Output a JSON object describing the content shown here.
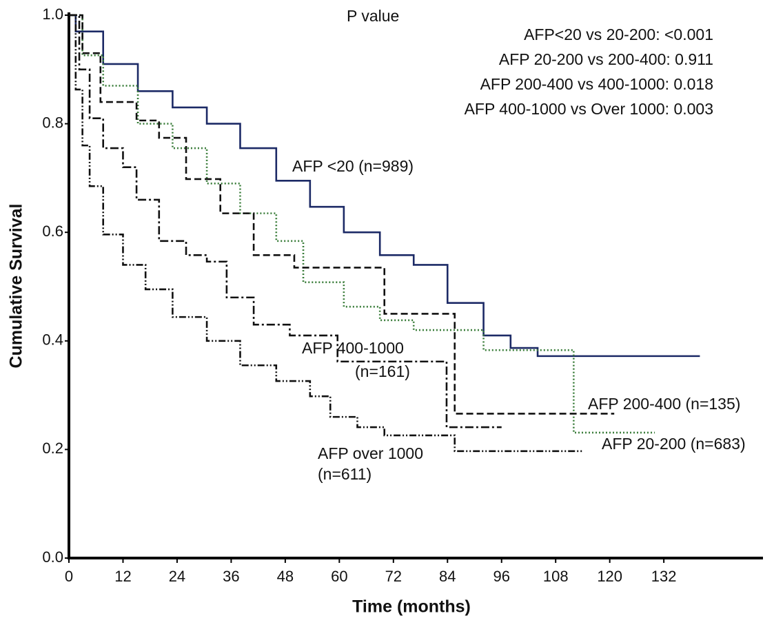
{
  "chart_data": {
    "type": "step",
    "x_label": "Time (months)",
    "y_label": "Cumulative Survival",
    "xlim": [
      0,
      154
    ],
    "ylim": [
      0,
      1
    ],
    "xticks": [
      0,
      12,
      24,
      36,
      48,
      60,
      72,
      84,
      96,
      108,
      120,
      132
    ],
    "yticks": [
      {
        "value": 0,
        "label": "0.0"
      },
      0.2,
      0.4,
      0.6,
      0.8,
      {
        "value": 1,
        "label": "1.0"
      }
    ],
    "annotations": [
      "P value",
      "AFP<20 vs 20-200: <0.001",
      "AFP 20-200 vs 200-400: 0.911",
      "AFP 200-400 vs 400-1000: 0.018",
      "AFP 400-1000 vs Over 1000: 0.003"
    ],
    "series": [
      {
        "labels": [
          "AFP <20 (n=989)"
        ],
        "color": "#1c2a66",
        "dash": "none",
        "x": [
          0,
          1.5,
          7.6,
          15.3,
          23,
          30.6,
          38,
          46,
          53.5,
          61,
          69,
          76.5,
          84,
          92,
          98,
          104,
          140
        ],
        "values": [
          1,
          0.97,
          0.91,
          0.86,
          0.83,
          0.8,
          0.755,
          0.695,
          0.647,
          0.6,
          0.558,
          0.54,
          0.47,
          0.41,
          0.387,
          0.372,
          0.372
        ]
      },
      {
        "labels": [
          "AFP 20-200 (n=683)"
        ],
        "color": "#3a7d3a",
        "dash": "2,3",
        "x": [
          0,
          3,
          7.6,
          15.3,
          23,
          30.6,
          38,
          46,
          52,
          61,
          69,
          76.5,
          92,
          112,
          130
        ],
        "values": [
          1,
          0.926,
          0.87,
          0.8,
          0.755,
          0.69,
          0.635,
          0.584,
          0.508,
          0.463,
          0.438,
          0.42,
          0.383,
          0.231,
          0.231
        ]
      },
      {
        "labels": [
          "AFP 200-400 (n=135)"
        ],
        "color": "#111111",
        "dash": "10,5",
        "x": [
          0,
          3,
          7,
          15,
          20,
          26,
          33.6,
          41,
          50,
          70,
          85.6,
          121
        ],
        "values": [
          1,
          0.93,
          0.84,
          0.806,
          0.774,
          0.698,
          0.635,
          0.558,
          0.535,
          0.45,
          0.266,
          0.266
        ]
      },
      {
        "labels": [
          "AFP 400-1000",
          "(n=161)"
        ],
        "color": "#111111",
        "dash": "12,4,3,4",
        "x": [
          0,
          2.3,
          4.6,
          7.6,
          12,
          15,
          20,
          26,
          30.6,
          35,
          41,
          49,
          59.6,
          83.8,
          96
        ],
        "values": [
          1,
          0.9,
          0.81,
          0.755,
          0.72,
          0.66,
          0.584,
          0.558,
          0.546,
          0.48,
          0.43,
          0.41,
          0.362,
          0.241,
          0.241
        ]
      },
      {
        "labels": [
          "AFP over 1000",
          "(n=611)"
        ],
        "color": "#111111",
        "dash": "10,3,2,3,2,3",
        "x": [
          0,
          1.5,
          3,
          4.6,
          7.6,
          12,
          17,
          23,
          30.6,
          38,
          46,
          53.5,
          58,
          64,
          70,
          85.6,
          114
        ],
        "values": [
          1,
          0.863,
          0.76,
          0.685,
          0.596,
          0.54,
          0.495,
          0.444,
          0.4,
          0.355,
          0.326,
          0.298,
          0.26,
          0.241,
          0.226,
          0.197,
          0.197
        ]
      }
    ]
  }
}
